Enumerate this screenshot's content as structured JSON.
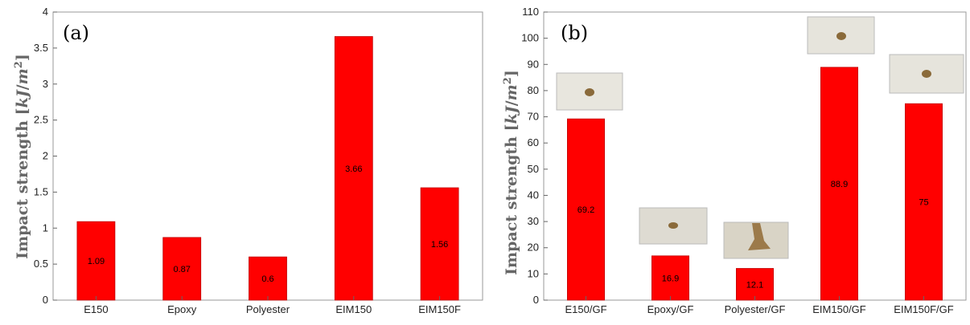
{
  "chart_data": [
    {
      "type": "bar",
      "panel_label": "(a)",
      "categories": [
        "E150",
        "Epoxy",
        "Polyester",
        "EIM150",
        "EIM150F"
      ],
      "values": [
        1.09,
        0.87,
        0.6,
        3.66,
        1.56
      ],
      "value_labels": [
        "1.09",
        "0.87",
        "0.6",
        "3.66",
        "1.56"
      ],
      "ylabel": "Impact strength [kJ/m2]",
      "ylim": [
        0,
        4
      ],
      "yticks": [
        "0",
        "0.5",
        "1",
        "1.5",
        "2",
        "2.5",
        "3",
        "3.5",
        "4"
      ],
      "bar_color": "#ff0000",
      "grid": false
    },
    {
      "type": "bar",
      "panel_label": "(b)",
      "categories": [
        "E150/GF",
        "Epoxy/GF",
        "Polyester/GF",
        "EIM150/GF",
        "EIM150F/GF"
      ],
      "values": [
        69.2,
        16.9,
        12.1,
        88.9,
        75
      ],
      "value_labels": [
        "69.2",
        "16.9",
        "12.1",
        "88.9",
        "75"
      ],
      "ylabel": "Impact strength [kJ/m2]",
      "ylim": [
        0,
        110
      ],
      "yticks": [
        "0",
        "10",
        "20",
        "30",
        "40",
        "50",
        "60",
        "70",
        "80",
        "90",
        "100",
        "110"
      ],
      "bar_color": "#ff0000",
      "grid": false,
      "has_specimen_photos": true
    }
  ]
}
